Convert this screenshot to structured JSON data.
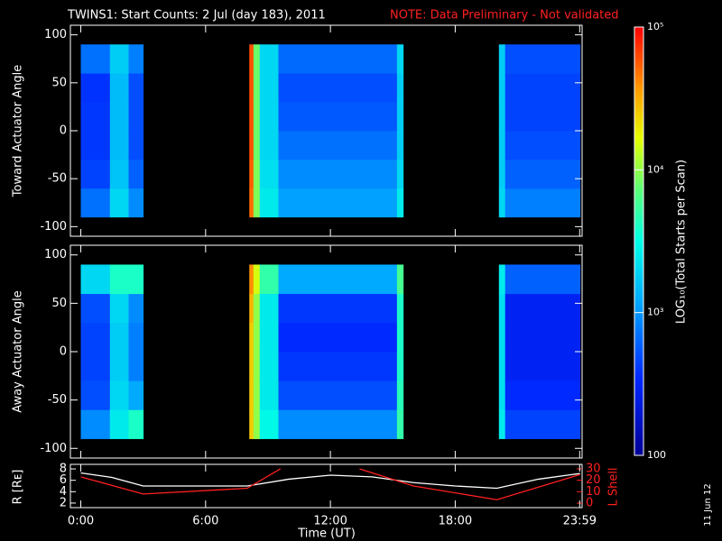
{
  "chart_data": [
    {
      "type": "heatmap",
      "title": "TWINS1: Start Counts:  2 Jul (day 183), 2011",
      "note": "NOTE: Data Preliminary - Not validated",
      "ylabel": "Toward Actuator Angle",
      "xlim": [
        -0.5,
        24.1
      ],
      "ylim": [
        -110,
        110
      ],
      "yticks": [
        100,
        50,
        0,
        -50,
        -100
      ],
      "time_edges": [
        0,
        1.4,
        2.3,
        3.0,
        8.1,
        8.3,
        8.6,
        9.5,
        15.2,
        15.5,
        20.1,
        20.4,
        24
      ],
      "angle_edges": [
        -90,
        -60,
        -30,
        0,
        30,
        60,
        90
      ],
      "values": [
        [
          700,
          450,
          400,
          400,
          380,
          700
        ],
        [
          2000,
          1600,
          1500,
          1500,
          1500,
          1800
        ],
        [
          900,
          600,
          500,
          500,
          500,
          800
        ],
        null,
        [
          50000,
          55000,
          60000,
          60000,
          60000,
          60000
        ],
        [
          9000,
          9000,
          8000,
          8000,
          8000,
          8000
        ],
        [
          2500,
          2200,
          2000,
          2000,
          2000,
          2000
        ],
        [
          1100,
          900,
          700,
          550,
          500,
          650
        ],
        [
          2500,
          2000,
          1800,
          1800,
          1800,
          2000
        ],
        null,
        [
          2000,
          1800,
          1800,
          1800,
          1800,
          1800
        ],
        [
          800,
          600,
          500,
          450,
          450,
          500
        ]
      ]
    },
    {
      "type": "heatmap",
      "ylabel": "Away Actuator Angle",
      "xlim": [
        -0.5,
        24.1
      ],
      "ylim": [
        -110,
        110
      ],
      "yticks": [
        100,
        50,
        0,
        -50,
        -100
      ],
      "time_edges": [
        0,
        1.4,
        2.3,
        3.0,
        8.1,
        8.3,
        8.6,
        9.5,
        15.2,
        15.5,
        20.1,
        20.4,
        24
      ],
      "angle_edges": [
        -90,
        -60,
        -30,
        0,
        30,
        60,
        90
      ],
      "values": [
        [
          900,
          500,
          450,
          450,
          500,
          2000
        ],
        [
          2500,
          2000,
          1800,
          1800,
          2000,
          4000
        ],
        [
          4000,
          1200,
          800,
          800,
          900,
          4000
        ],
        null,
        [
          25000,
          25000,
          25000,
          25000,
          30000,
          40000
        ],
        [
          10000,
          10000,
          10000,
          10000,
          10000,
          15000
        ],
        [
          3000,
          2500,
          2500,
          2500,
          2500,
          5000
        ],
        [
          900,
          500,
          400,
          350,
          400,
          1200
        ],
        [
          5000,
          4500,
          4000,
          4000,
          4000,
          6000
        ],
        null,
        [
          2500,
          2200,
          2200,
          2200,
          2200,
          2500
        ],
        [
          450,
          350,
          300,
          300,
          300,
          600
        ]
      ]
    },
    {
      "type": "line",
      "ylabel": "R [Rᴇ]",
      "y2label": "L Shell",
      "xlabel": "Time (UT)",
      "xlim": [
        -0.5,
        24.1
      ],
      "xticks": [
        {
          "value": 0,
          "label": "0:00"
        },
        {
          "value": 6,
          "label": "6:00"
        },
        {
          "value": 12,
          "label": "12:00"
        },
        {
          "value": 18,
          "label": "18:00"
        },
        {
          "value": 23.983,
          "label": "23:59"
        }
      ],
      "ylim": [
        1.2,
        8.8
      ],
      "yticks": [
        2,
        4,
        6,
        8
      ],
      "y2lim": [
        -3.9,
        33.9
      ],
      "y2ticks": [
        0,
        10,
        20,
        30
      ],
      "series": [
        {
          "name": "R",
          "color": "#ffffff",
          "x": [
            0,
            1.5,
            3,
            8,
            10,
            12,
            14,
            16,
            18,
            20,
            22,
            24
          ],
          "values": [
            7.3,
            6.5,
            5,
            5,
            6.2,
            6.9,
            6.6,
            5.6,
            5,
            4.6,
            6.2,
            7.2
          ]
        },
        {
          "name": "L Shell",
          "color": "#ff2020",
          "axis": "y2",
          "x": [
            0,
            3,
            8,
            9.6,
            11.5,
            13.4,
            16,
            20,
            24
          ],
          "values": [
            23,
            8,
            13,
            30,
            null,
            30,
            15,
            3,
            25
          ]
        }
      ]
    },
    {
      "type": "colorbar",
      "label": "LOG₁₀(Total Starts per Scan)",
      "log": true,
      "zlim": [
        100,
        100000
      ],
      "zticks": [
        100,
        {
          "value": 1000,
          "label": "10³"
        },
        {
          "value": 10000,
          "label": "10⁴"
        },
        {
          "value": 100000,
          "label": "10⁵"
        }
      ],
      "annotation": "11 Jun 12"
    }
  ]
}
